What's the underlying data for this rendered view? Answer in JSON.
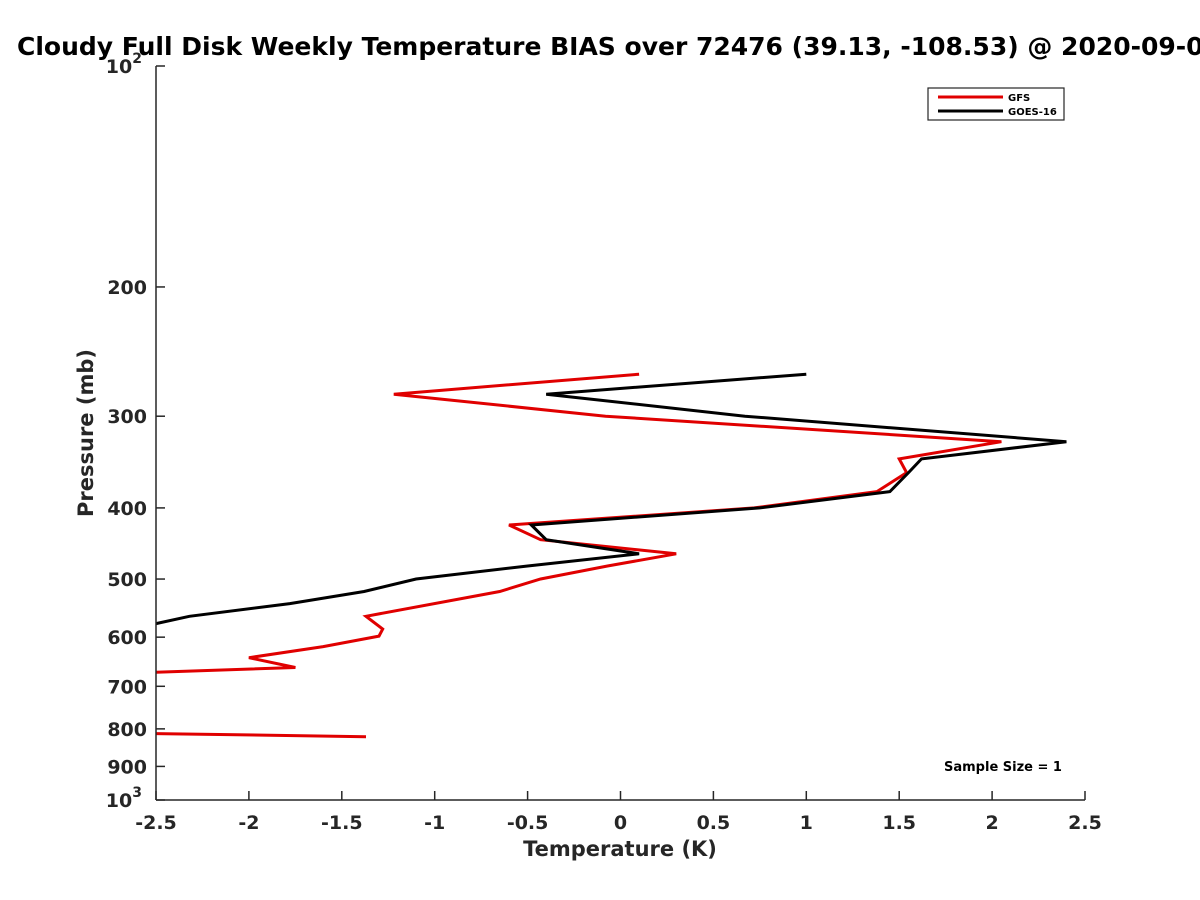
{
  "chart_data": {
    "type": "line",
    "title": "Cloudy Full Disk Weekly Temperature BIAS over 72476 (39.13, -108.53) @ 2020-09-0",
    "xlabel": "Temperature (K)",
    "ylabel": "Pressure (mb)",
    "xlim": [
      -2.5,
      2.5
    ],
    "ylim": [
      100,
      1000
    ],
    "y_scale": "log",
    "y_reversed": true,
    "grid": false,
    "legend_position": "top-right",
    "x_ticks": [
      "-2.5",
      "-2",
      "-1.5",
      "-1",
      "-0.5",
      "0",
      "0.5",
      "1",
      "1.5",
      "2",
      "2.5"
    ],
    "y_ticks": [
      {
        "value": 100,
        "base": "10",
        "exp": "2"
      },
      {
        "value": 200,
        "label": "200"
      },
      {
        "value": 300,
        "label": "300"
      },
      {
        "value": 400,
        "label": "400"
      },
      {
        "value": 500,
        "label": "500"
      },
      {
        "value": 600,
        "label": "600"
      },
      {
        "value": 700,
        "label": "700"
      },
      {
        "value": 800,
        "label": "800"
      },
      {
        "value": 900,
        "label": "900"
      },
      {
        "value": 1000,
        "base": "10",
        "exp": "3"
      }
    ],
    "series": [
      {
        "name": "GFS",
        "color": "#e00000",
        "points": [
          [
            0.1,
            263
          ],
          [
            -1.22,
            280
          ],
          [
            -0.08,
            300
          ],
          [
            2.05,
            325
          ],
          [
            1.5,
            343
          ],
          [
            1.54,
            358
          ],
          [
            1.38,
            380
          ],
          [
            0.72,
            400
          ],
          [
            -0.6,
            422
          ],
          [
            -0.43,
            442
          ],
          [
            0.3,
            462
          ],
          [
            -0.07,
            480
          ],
          [
            -0.43,
            500
          ],
          [
            -0.65,
            520
          ],
          [
            -1.37,
            562
          ],
          [
            -1.28,
            585
          ],
          [
            -1.3,
            598
          ],
          [
            -1.6,
            618
          ],
          [
            -2.0,
            640
          ],
          [
            -1.75,
            660
          ],
          [
            -2.5,
            670
          ]
        ]
      },
      {
        "name": "GFS",
        "color": "#e00000",
        "points": [
          [
            -2.5,
            812
          ],
          [
            -1.37,
            820
          ]
        ]
      },
      {
        "name": "GOES-16",
        "color": "#000000",
        "points": [
          [
            1.0,
            263
          ],
          [
            -0.4,
            280
          ],
          [
            0.67,
            300
          ],
          [
            2.4,
            325
          ],
          [
            1.62,
            343
          ],
          [
            1.55,
            358
          ],
          [
            1.45,
            380
          ],
          [
            0.75,
            400
          ],
          [
            -0.48,
            422
          ],
          [
            -0.4,
            442
          ],
          [
            0.1,
            462
          ],
          [
            -0.5,
            480
          ],
          [
            -1.1,
            500
          ],
          [
            -1.38,
            520
          ],
          [
            -1.78,
            540
          ],
          [
            -2.32,
            562
          ],
          [
            -2.5,
            575
          ]
        ]
      }
    ],
    "legend": [
      {
        "label": "GFS",
        "color": "#e00000"
      },
      {
        "label": "GOES-16",
        "color": "#000000"
      }
    ],
    "annotation": "Sample Size = 1"
  }
}
